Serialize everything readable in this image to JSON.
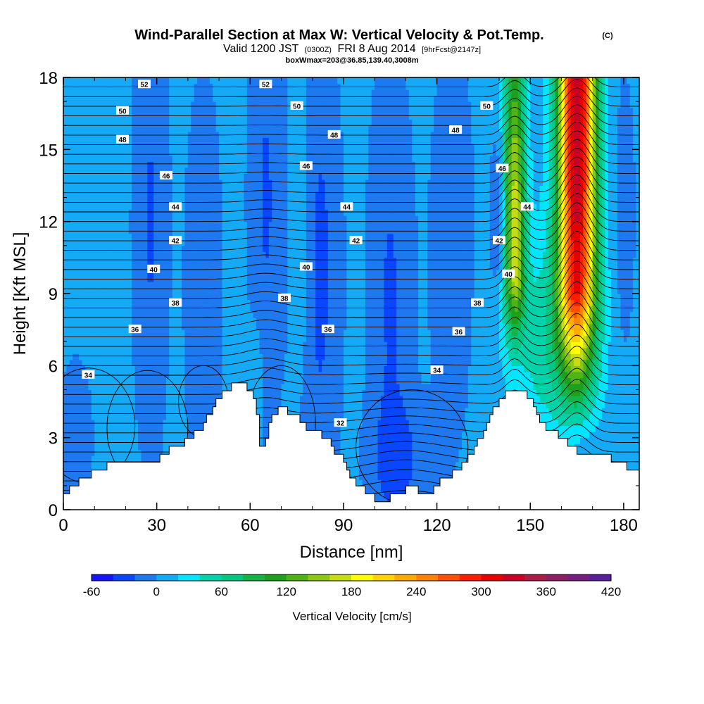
{
  "chart_data": {
    "type": "heatmap",
    "title": "Wind-Parallel Section at Max W: Vertical Velocity & Pot.Temp.",
    "title_mark": "(C)",
    "subtitle": {
      "part1": "Valid 1200 JST",
      "part2": "(0300Z)",
      "part3": "FRI 8 Aug 2014",
      "part4": "[9hrFcst@2147z]"
    },
    "subtitle2": "boxWmax=203@36.85,139.40,3008m",
    "xlabel": "Distance [nm]",
    "ylabel": "Height [Kft MSL]",
    "xlim": [
      0,
      185
    ],
    "ylim": [
      0,
      18
    ],
    "x_ticks": [
      "0",
      "30",
      "60",
      "90",
      "120",
      "150",
      "180"
    ],
    "y_ticks": [
      "0",
      "3",
      "6",
      "9",
      "12",
      "15",
      "18"
    ],
    "colorbar": {
      "label": "Vertical Velocity [cm/s]",
      "tick_labels": [
        "-60",
        "0",
        "60",
        "120",
        "180",
        "240",
        "300",
        "360",
        "420"
      ],
      "min": -60,
      "max": 420,
      "colors": [
        "#1414ff",
        "#0a46ff",
        "#1e78f0",
        "#14aaf5",
        "#00e6ff",
        "#00d2aa",
        "#00c882",
        "#14b446",
        "#1ea01e",
        "#50b414",
        "#8cc814",
        "#c8dc14",
        "#ffff00",
        "#ffd200",
        "#ffaa00",
        "#ff8200",
        "#ff5000",
        "#ff1e00",
        "#e60000",
        "#c80028",
        "#aa1e46",
        "#8c1e64",
        "#781e82",
        "#5a1e9b"
      ]
    },
    "updraft_cores": [
      {
        "x": 145,
        "z_top": 18,
        "w_max": 160
      },
      {
        "x": 165,
        "z_top": 18,
        "w_max": 330
      }
    ],
    "isentrope_labels": [
      {
        "text": "52",
        "x": 26,
        "y": 17.7
      },
      {
        "text": "52",
        "x": 65,
        "y": 17.7
      },
      {
        "text": "50",
        "x": 19,
        "y": 16.6
      },
      {
        "text": "50",
        "x": 75,
        "y": 16.8
      },
      {
        "text": "50",
        "x": 136,
        "y": 16.8
      },
      {
        "text": "48",
        "x": 19,
        "y": 15.4
      },
      {
        "text": "48",
        "x": 87,
        "y": 15.6
      },
      {
        "text": "48",
        "x": 126,
        "y": 15.8
      },
      {
        "text": "46",
        "x": 33,
        "y": 13.9
      },
      {
        "text": "46",
        "x": 78,
        "y": 14.3
      },
      {
        "text": "46",
        "x": 141,
        "y": 14.2
      },
      {
        "text": "44",
        "x": 36,
        "y": 12.6
      },
      {
        "text": "44",
        "x": 91,
        "y": 12.6
      },
      {
        "text": "44",
        "x": 149,
        "y": 12.6
      },
      {
        "text": "42",
        "x": 36,
        "y": 11.2
      },
      {
        "text": "42",
        "x": 94,
        "y": 11.2
      },
      {
        "text": "42",
        "x": 140,
        "y": 11.2
      },
      {
        "text": "40",
        "x": 29,
        "y": 10.0
      },
      {
        "text": "40",
        "x": 78,
        "y": 10.1
      },
      {
        "text": "40",
        "x": 143,
        "y": 9.8
      },
      {
        "text": "38",
        "x": 36,
        "y": 8.6
      },
      {
        "text": "38",
        "x": 71,
        "y": 8.8
      },
      {
        "text": "38",
        "x": 133,
        "y": 8.6
      },
      {
        "text": "36",
        "x": 23,
        "y": 7.5
      },
      {
        "text": "36",
        "x": 85,
        "y": 7.5
      },
      {
        "text": "36",
        "x": 127,
        "y": 7.4
      },
      {
        "text": "34",
        "x": 8,
        "y": 5.6
      },
      {
        "text": "34",
        "x": 120,
        "y": 5.8
      },
      {
        "text": "32",
        "x": 89,
        "y": 3.6
      }
    ]
  }
}
